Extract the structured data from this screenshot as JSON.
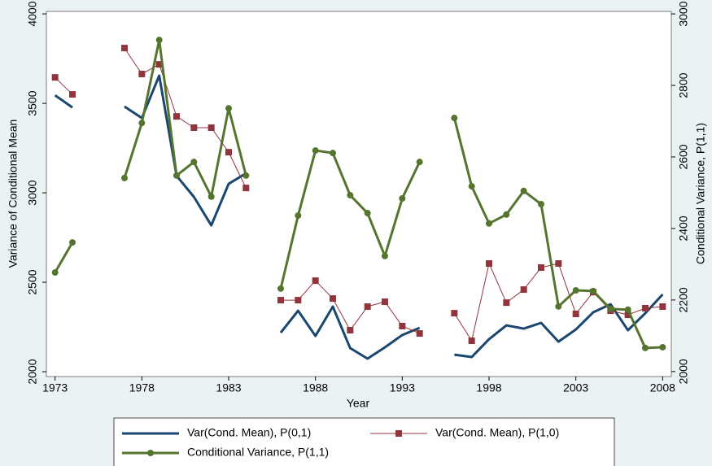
{
  "chart_data": {
    "type": "line",
    "x_label": "Year",
    "y_label": "Variance of Conditional Mean",
    "y2_label": "Conditional Variance, P(1,1)",
    "x": [
      1973,
      1974,
      1975,
      1976,
      1977,
      1978,
      1979,
      1980,
      1981,
      1982,
      1983,
      1984,
      1985,
      1986,
      1987,
      1988,
      1989,
      1990,
      1991,
      1992,
      1993,
      1994,
      1995,
      1996,
      1997,
      1998,
      1999,
      2000,
      2001,
      2002,
      2003,
      2004,
      2005,
      2006,
      2007,
      2008
    ],
    "xlim": [
      1972.5,
      2008.5
    ],
    "xticks": [
      1973,
      1978,
      1983,
      1988,
      1993,
      1998,
      2003,
      2008
    ],
    "ylim": [
      1973,
      4014
    ],
    "yticks": [
      2000,
      2500,
      3000,
      3500,
      4000
    ],
    "y2lim": [
      1986,
      3007
    ],
    "y2ticks": [
      2000,
      2200,
      2400,
      2600,
      2800,
      3000
    ],
    "grid": false,
    "legend": "bottom",
    "series": [
      {
        "name": "Var(Cond. Mean), P(0,1)",
        "color": "#1a476f",
        "marker": "none",
        "values": [
          3545,
          3477,
          null,
          null,
          3482,
          3418,
          3655,
          3095,
          2977,
          2818,
          3050,
          3109,
          null,
          2218,
          2341,
          2200,
          2364,
          2132,
          2073,
          2136,
          2205,
          2245,
          null,
          2095,
          2082,
          2182,
          2259,
          2241,
          2273,
          2168,
          2236,
          2332,
          2377,
          2232,
          2327,
          2432
        ]
      },
      {
        "name": "Var(Cond. Mean), P(1,0)",
        "color": "#90353b",
        "marker": "square",
        "values": [
          3645,
          3550,
          null,
          null,
          3809,
          3664,
          3718,
          3427,
          3364,
          3364,
          3227,
          3027,
          null,
          2400,
          2400,
          2509,
          2409,
          2232,
          2364,
          2391,
          2255,
          2214,
          null,
          2327,
          2173,
          2605,
          2386,
          2459,
          2582,
          2605,
          2323,
          2445,
          2341,
          2318,
          2355,
          2364
        ]
      },
      {
        "name": "Conditional Variance, P(1,1)",
        "color": "#55752f",
        "marker": "circle",
        "axis": "y2",
        "values": [
          2277,
          2361,
          null,
          null,
          2541,
          2695,
          2927,
          2548,
          2586,
          2489,
          2736,
          2548,
          null,
          2232,
          2436,
          2618,
          2611,
          2493,
          2443,
          2323,
          2484,
          2586,
          null,
          2709,
          2518,
          2414,
          2439,
          2505,
          2468,
          2182,
          2227,
          2225,
          2175,
          2173,
          2066,
          2068
        ]
      }
    ]
  }
}
